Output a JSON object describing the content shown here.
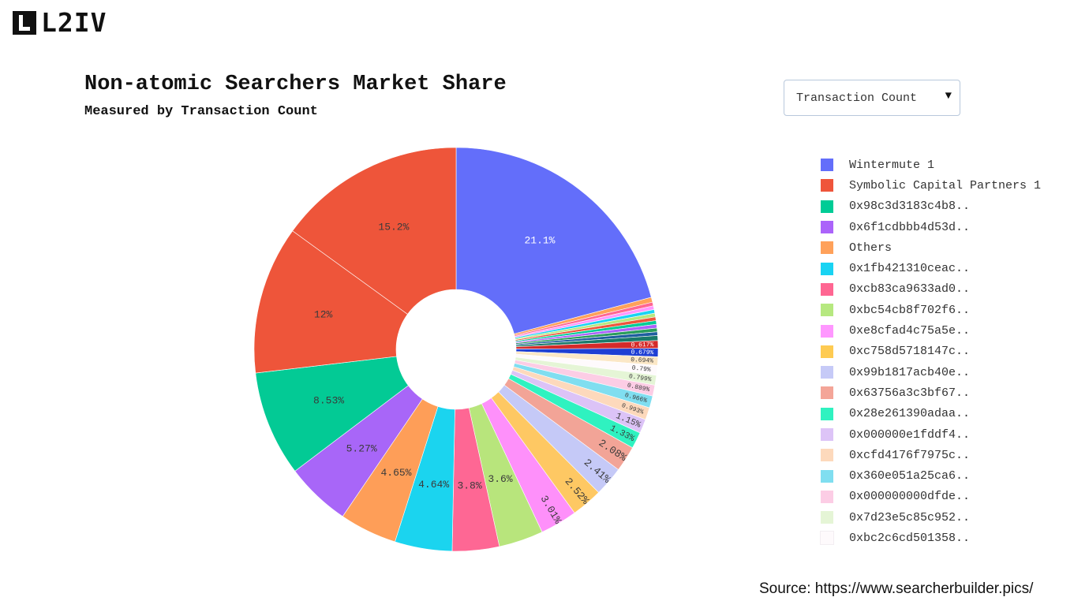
{
  "brand": {
    "logo_text": "L2IV"
  },
  "dropdown": {
    "selected": "Transaction Count",
    "arrow_icon": "caret-down-icon"
  },
  "source": "Source: https://www.searcherbuilder.pics/",
  "chart_data": {
    "type": "pie",
    "hole": true,
    "title": "Non-atomic Searchers Market Share",
    "subtitle": "Measured by Transaction Count",
    "legend_position": "right",
    "slices": [
      {
        "label": "Wintermute 1",
        "value": 21.1,
        "value_label": "21.1%",
        "color": "#636efa"
      },
      {
        "label": "Others",
        "value": 0.4,
        "value_label": "",
        "color": "#ffa15a"
      },
      {
        "label": "",
        "value": 0.3,
        "value_label": "",
        "color": "#ff6692"
      },
      {
        "label": "",
        "value": 0.3,
        "value_label": "",
        "color": "#ff97ff"
      },
      {
        "label": "",
        "value": 0.3,
        "value_label": "",
        "color": "#19d3f3"
      },
      {
        "label": "",
        "value": 0.3,
        "value_label": "",
        "color": "#b6e880"
      },
      {
        "label": "",
        "value": 0.3,
        "value_label": "",
        "color": "#ef553b"
      },
      {
        "label": "",
        "value": 0.3,
        "value_label": "",
        "color": "#00cc96"
      },
      {
        "label": "",
        "value": 0.3,
        "value_label": "",
        "color": "#ab63fa"
      },
      {
        "label": "",
        "value": 0.3,
        "value_label": "",
        "color": "#2a9d5c"
      },
      {
        "label": "",
        "value": 0.3,
        "value_label": "",
        "color": "#1f5f9f"
      },
      {
        "label": "",
        "value": 0.4,
        "value_label": "",
        "color": "#1a7a6a"
      },
      {
        "label": "",
        "value": 0.617,
        "value_label": "0.617%",
        "color": "#d42a2a"
      },
      {
        "label": "",
        "value": 0.679,
        "value_label": "0.679%",
        "color": "#1e3fd4"
      },
      {
        "label": "",
        "value": 0.694,
        "value_label": "0.694%",
        "color": "#fbe7c6"
      },
      {
        "label": "0xbc2c6cd501358..",
        "value": 0.79,
        "value_label": "0.79%",
        "color": "#fefafc"
      },
      {
        "label": "0x7d23e5c85c952..",
        "value": 0.799,
        "value_label": "0.799%",
        "color": "#e5f5d6"
      },
      {
        "label": "0x000000000dfde..",
        "value": 0.889,
        "value_label": "0.889%",
        "color": "#fccde5"
      },
      {
        "label": "0x360e051a25ca6..",
        "value": 0.966,
        "value_label": "0.966%",
        "color": "#80def0"
      },
      {
        "label": "0xcfd4176f7975c..",
        "value": 0.993,
        "value_label": "0.993%",
        "color": "#fdd9bc"
      },
      {
        "label": "0x000000e1fddf4..",
        "value": 1.15,
        "value_label": "1.15%",
        "color": "#dcc3f7"
      },
      {
        "label": "0x28e261390adaa..",
        "value": 1.33,
        "value_label": "1.33%",
        "color": "#2ff2c0"
      },
      {
        "label": "0x63756a3c3bf67..",
        "value": 2.08,
        "value_label": "2.08%",
        "color": "#f2a497"
      },
      {
        "label": "0x99b1817acb40e..",
        "value": 2.41,
        "value_label": "2.41%",
        "color": "#c5c9f7"
      },
      {
        "label": "0xc758d5718147c..",
        "value": 2.52,
        "value_label": "2.52%",
        "color": "#fec863"
      },
      {
        "label": "0xe8cfad4c75a5e..",
        "value": 3.01,
        "value_label": "3.01%",
        "color": "#fe90fa"
      },
      {
        "label": "0xbc54cb8f702f6..",
        "value": 3.6,
        "value_label": "3.6%",
        "color": "#b8e57c"
      },
      {
        "label": "0xcb83ca9633ad0..",
        "value": 3.8,
        "value_label": "3.8%",
        "color": "#fe6794"
      },
      {
        "label": "0x1fb421310ceac..",
        "value": 4.64,
        "value_label": "4.64%",
        "color": "#1bd4ef"
      },
      {
        "label": "",
        "value": 4.65,
        "value_label": "4.65%",
        "color": "#fe9e58"
      },
      {
        "label": "0x6f1cdbbb4d53d..",
        "value": 5.27,
        "value_label": "5.27%",
        "color": "#a866f8"
      },
      {
        "label": "0x98c3d3183c4b8..",
        "value": 8.53,
        "value_label": "8.53%",
        "color": "#03ca95"
      },
      {
        "label": "Symbolic Capital Partners 1",
        "value": 12,
        "value_label": "12%",
        "color": "#ee553a"
      },
      {
        "label": "",
        "value": 15.2,
        "value_label": "15.2%",
        "color": "#ee553a"
      }
    ],
    "legend": [
      {
        "label": "Wintermute 1",
        "color": "#636efa"
      },
      {
        "label": "Symbolic Capital Partners 1",
        "color": "#ef553b"
      },
      {
        "label": "0x98c3d3183c4b8..",
        "color": "#00cc96"
      },
      {
        "label": "0x6f1cdbbb4d53d..",
        "color": "#ab63fa"
      },
      {
        "label": "Others",
        "color": "#ffa15a"
      },
      {
        "label": "0x1fb421310ceac..",
        "color": "#19d3f3"
      },
      {
        "label": "0xcb83ca9633ad0..",
        "color": "#ff6692"
      },
      {
        "label": "0xbc54cb8f702f6..",
        "color": "#b6e880"
      },
      {
        "label": "0xe8cfad4c75a5e..",
        "color": "#ff97ff"
      },
      {
        "label": "0xc758d5718147c..",
        "color": "#fecb52"
      },
      {
        "label": "0x99b1817acb40e..",
        "color": "#c6caf7"
      },
      {
        "label": "0x63756a3c3bf67..",
        "color": "#f4a598"
      },
      {
        "label": "0x28e261390adaa..",
        "color": "#2ff2c0"
      },
      {
        "label": "0x000000e1fddf4..",
        "color": "#ddc4f7"
      },
      {
        "label": "0xcfd4176f7975c..",
        "color": "#fdd9bc"
      },
      {
        "label": "0x360e051a25ca6..",
        "color": "#80def0"
      },
      {
        "label": "0x000000000dfde..",
        "color": "#fccde5"
      },
      {
        "label": "0x7d23e5c85c952..",
        "color": "#e5f5d6"
      },
      {
        "label": "0xbc2c6cd501358..",
        "color": "#fefafc"
      }
    ]
  }
}
